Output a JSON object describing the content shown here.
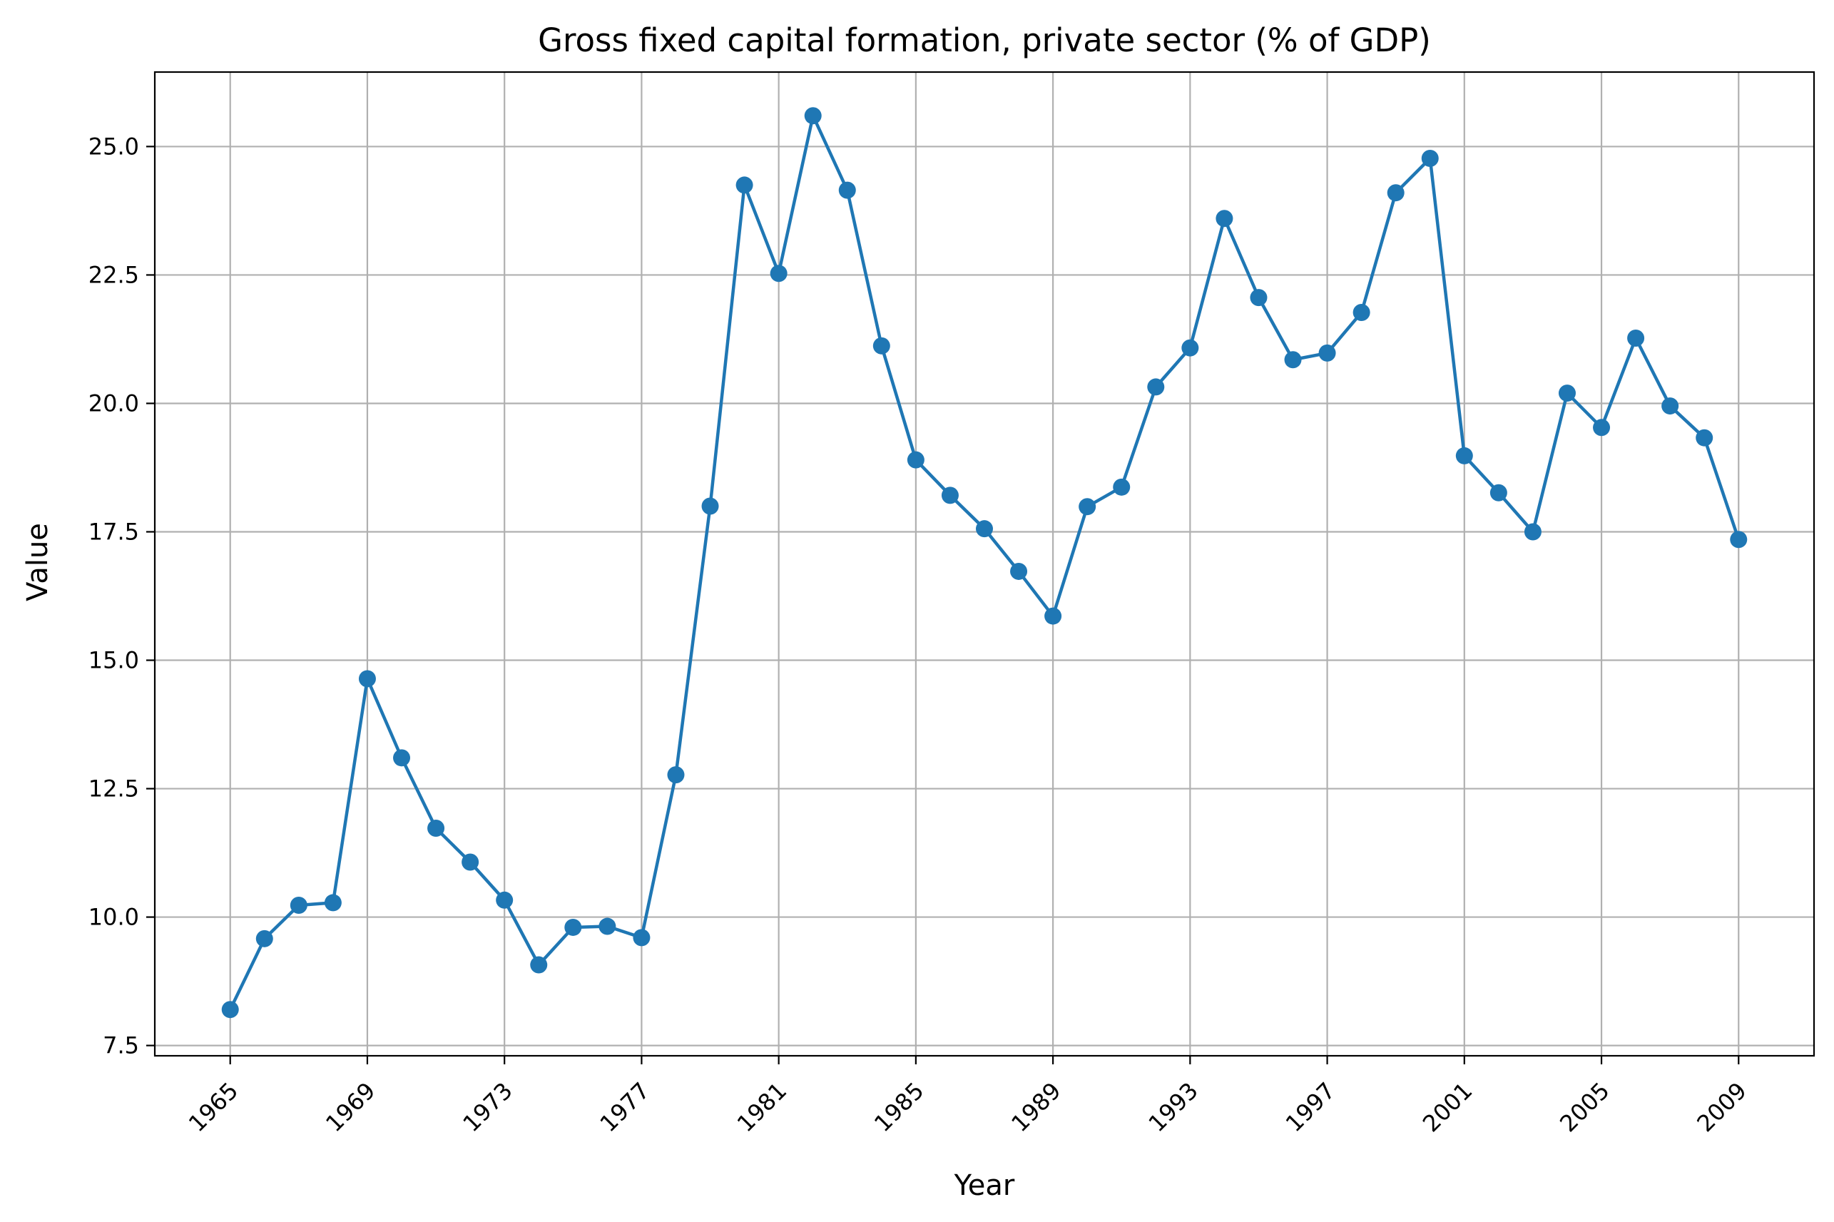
{
  "chart_data": {
    "type": "line",
    "title": "Gross fixed capital formation, private sector (% of GDP)",
    "xlabel": "Year",
    "ylabel": "Value",
    "xlim": [
      1962.8,
      2011.2
    ],
    "ylim": [
      7.3,
      26.45
    ],
    "x_ticks": [
      1965,
      1969,
      1973,
      1977,
      1981,
      1985,
      1989,
      1993,
      1997,
      2001,
      2005,
      2009
    ],
    "y_ticks": [
      7.5,
      10.0,
      12.5,
      15.0,
      17.5,
      20.0,
      22.5,
      25.0
    ],
    "grid": true,
    "marker": "circle",
    "color": "#1f77b4",
    "x": [
      1965,
      1966,
      1967,
      1968,
      1969,
      1970,
      1971,
      1972,
      1973,
      1974,
      1975,
      1976,
      1977,
      1978,
      1979,
      1980,
      1981,
      1982,
      1983,
      1984,
      1985,
      1986,
      1987,
      1988,
      1989,
      1990,
      1991,
      1992,
      1993,
      1994,
      1995,
      1996,
      1997,
      1998,
      1999,
      2000,
      2001,
      2002,
      2003,
      2004,
      2005,
      2006,
      2007,
      2008,
      2009
    ],
    "series": [
      {
        "values": [
          8.2,
          9.58,
          10.23,
          10.28,
          14.64,
          13.1,
          11.73,
          11.07,
          10.33,
          9.07,
          9.8,
          9.82,
          9.6,
          12.77,
          18.0,
          24.25,
          22.53,
          25.6,
          24.15,
          21.12,
          18.9,
          18.21,
          17.56,
          16.73,
          15.86,
          17.99,
          18.37,
          20.32,
          21.08,
          23.6,
          22.06,
          20.85,
          20.98,
          21.77,
          24.1,
          24.77,
          18.98,
          18.26,
          17.5,
          20.2,
          19.53,
          21.27,
          19.95,
          19.33,
          17.35
        ]
      }
    ]
  }
}
